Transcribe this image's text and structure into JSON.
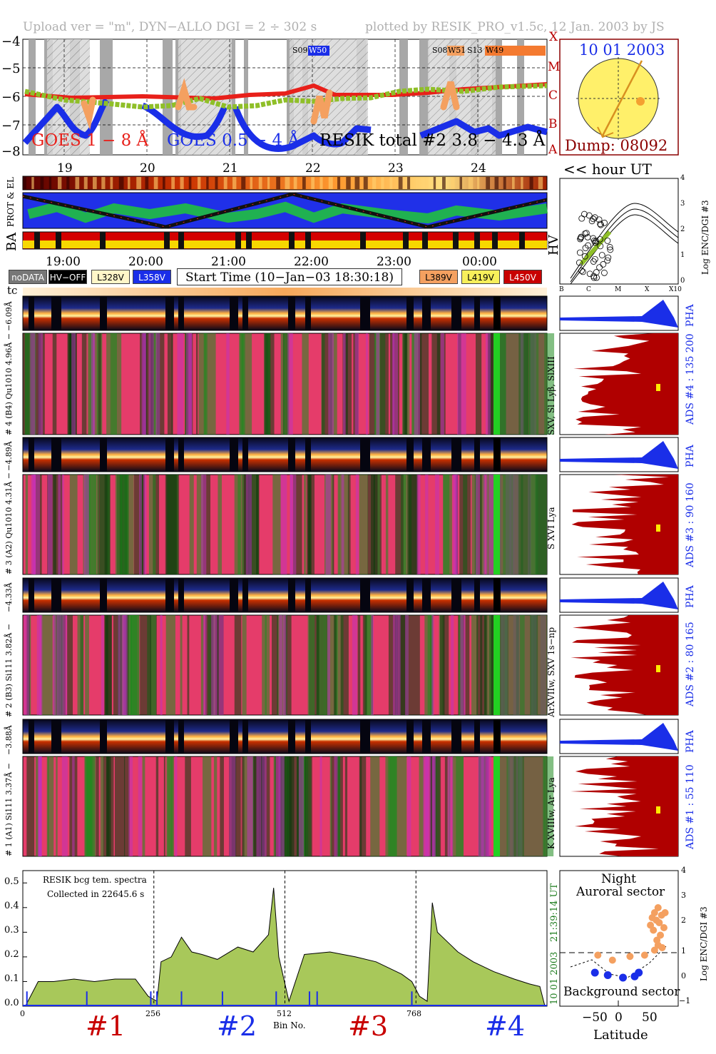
{
  "header": {
    "left": "Upload ver = \"m\", DYN−ALLO DGI =   2 ÷ 302 s",
    "right": "plotted by RESIK_PRO_v1.5c, 12 Jan. 2003 by JS"
  },
  "goes_panel": {
    "y_ticks": [
      "−4",
      "−5",
      "−6",
      "−7",
      "−8"
    ],
    "class_letters": [
      "X",
      "M",
      "C",
      "B",
      "A"
    ],
    "label_goes_1_8": "GOES 1 − 8 Å",
    "label_goes_05_4": "GOES 0.5 − 4 Å",
    "label_resik": "RESIK total #2 3.8 − 4.3 Å",
    "tag_s09": "S09",
    "tag_w50": "W50",
    "tag_s08": "S08",
    "tag_w51": "W51",
    "tag_s13": "S13",
    "tag_w49": "W49",
    "colors": {
      "goes_long": "#e8201a",
      "goes_short": "#1a2ee8",
      "resik": "#8fbf28",
      "flare": "#f4a060"
    }
  },
  "sun_panel": {
    "date": "10 01 2003",
    "dump": "Dump: 08092"
  },
  "hour_axis": {
    "hours_top": [
      "19",
      "20",
      "21",
      "22",
      "23",
      "24"
    ],
    "hours_bottom": [
      "19:00",
      "20:00",
      "21:00",
      "22:00",
      "23:00",
      "00:00"
    ],
    "hour_ut_label": "<< hour UT",
    "prot_el": "PROT & EL",
    "ba": "BA",
    "tc": "tc"
  },
  "status_legend": {
    "nodata": "noDATA",
    "hv_off": "HV−OFF",
    "v328": "L328V",
    "v358": "L358V",
    "start_time": "Start Time (10−Jan−03 18:30:18)",
    "v389": "L389V",
    "v419": "L419V",
    "v450": "L450V"
  },
  "hv_panel": {
    "label": "HV",
    "right_label": "Log ENC/DGI #3",
    "y_ticks": [
      "4",
      "3",
      "2",
      "1",
      "0"
    ],
    "x_ticks": [
      "B",
      "C",
      "M",
      "X",
      "X10"
    ]
  },
  "spectrometer_panels": [
    {
      "pha_label": "−6.09Å",
      "left_label": "# 4 (B4) Qu1010 4.96Å −",
      "line_label": "SXV, Sl Lyβ, SlXIII",
      "ads_label": "ADS #4 :  135 200"
    },
    {
      "pha_label": "−4.89Å",
      "left_label": "# 3 (A2) Qu1010 4.31Å −",
      "line_label": "S XVI Lya",
      "ads_label": "ADS #3 :  90 160"
    },
    {
      "pha_label": "−4.33Å",
      "left_label": "# 2 (B3) Si111 3.82Å −",
      "line_label": "ArXVIIw, SXV 1s−np",
      "ads_label": "ADS #2 :  80 165"
    },
    {
      "pha_label": "−3.88Å",
      "left_label": "# 1 (A1) Si111 3.37Å −",
      "line_label": "K XVIIIw, Ar Lya",
      "ads_label": "ADS #1 :  55 110"
    }
  ],
  "pha_word": "PHA",
  "spectrum_panel": {
    "legend_line1": "RESIK bcg tem. spectra",
    "legend_line2": "Collected in 22645.6 s",
    "y_ticks": [
      "0.5",
      "0.4",
      "0.3",
      "0.2",
      "0.1",
      "0.0"
    ],
    "x_ticks": [
      "0",
      "256",
      "512",
      "768"
    ],
    "x_label": "Bin No.",
    "right_date": "10 01 2003",
    "right_time": "21:39:14 UT",
    "channels": [
      "#1",
      "#2",
      "#3",
      "#4"
    ]
  },
  "chart_data": {
    "type": "area",
    "title": "",
    "xlabel": "Bin No.",
    "ylabel": "",
    "xlim": [
      0,
      1024
    ],
    "ylim": [
      0,
      0.55
    ],
    "series": [
      {
        "name": "RESIK bcg tem. spectra",
        "x": [
          5,
          30,
          60,
          100,
          140,
          180,
          220,
          245,
          262,
          270,
          290,
          310,
          330,
          350,
          380,
          420,
          450,
          480,
          490,
          500,
          520,
          550,
          600,
          650,
          690,
          740,
          760,
          775,
          790,
          800,
          810,
          830,
          850,
          880,
          920,
          960,
          990,
          1010,
          1020
        ],
        "y": [
          0.0,
          0.1,
          0.1,
          0.11,
          0.1,
          0.11,
          0.11,
          0.04,
          0.02,
          0.18,
          0.2,
          0.28,
          0.22,
          0.21,
          0.19,
          0.24,
          0.22,
          0.29,
          0.48,
          0.2,
          0.02,
          0.21,
          0.22,
          0.2,
          0.18,
          0.13,
          0.1,
          0.04,
          0.02,
          0.42,
          0.3,
          0.26,
          0.22,
          0.18,
          0.14,
          0.11,
          0.09,
          0.08,
          0.0
        ]
      }
    ],
    "latitude_panel": {
      "title_top1": "Night",
      "title_top2": "Auroral sector",
      "title_bottom": "Background sector",
      "x_ticks": [
        "−50",
        "0",
        "50"
      ],
      "x_label": "Latitude",
      "y_ticks": [
        "4",
        "3",
        "2",
        "1",
        "0",
        "−1"
      ],
      "y_label": "Log ENC/DGI #3",
      "night_points": [
        [
          -35,
          0.9
        ],
        [
          -10,
          0.7
        ],
        [
          20,
          0.85
        ],
        [
          45,
          0.9
        ],
        [
          55,
          2.1
        ],
        [
          58,
          2.4
        ],
        [
          60,
          1.9
        ],
        [
          62,
          2.6
        ],
        [
          65,
          2.3
        ],
        [
          66,
          1.5
        ],
        [
          68,
          2.8
        ],
        [
          70,
          2.2
        ],
        [
          72,
          1.7
        ],
        [
          74,
          2.5
        ],
        [
          75,
          1.2
        ],
        [
          78,
          2.0
        ],
        [
          80,
          2.6
        ],
        [
          62,
          1.1
        ],
        [
          68,
          1.3
        ]
      ],
      "background_points": [
        [
          -40,
          0.2
        ],
        [
          -18,
          0.1
        ],
        [
          8,
          0.0
        ],
        [
          28,
          0.05
        ],
        [
          35,
          0.2
        ]
      ]
    }
  }
}
